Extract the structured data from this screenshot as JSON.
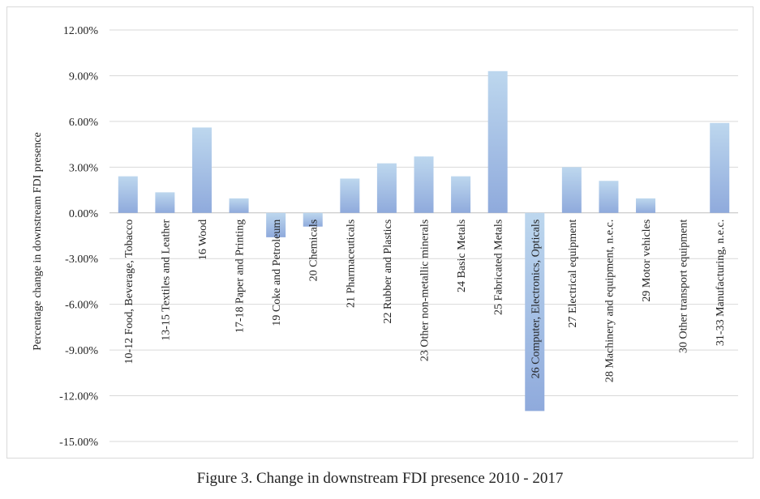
{
  "caption": "Figure 3. Change in downstream FDI presence 2010 - 2017",
  "colors": {
    "bar_top": "#bdd7ee",
    "bar_bottom": "#8faadc",
    "grid": "#d9d9d9",
    "axis": "#bfbfbf"
  },
  "chart_data": {
    "type": "bar",
    "title": "",
    "xlabel": "",
    "ylabel": "Percentage change in downstream FDI presence",
    "ylim": [
      -0.15,
      0.12
    ],
    "yticks": [
      0.12,
      0.09,
      0.06,
      0.03,
      0.0,
      -0.03,
      -0.06,
      -0.09,
      -0.12,
      -0.15
    ],
    "ytick_labels": [
      "12.00%",
      "9.00%",
      "6.00%",
      "3.00%",
      "0.00%",
      "-3.00%",
      "-6.00%",
      "-9.00%",
      "-12.00%",
      "-15.00%"
    ],
    "grid": true,
    "legend": "none",
    "categories": [
      "10-12 Food, Beverage, Tobacco",
      "13-15 Textiles and Leather",
      "16 Wood",
      "17-18 Paper and Printing",
      "19 Coke and Petroleum",
      "20 Chemicals",
      "21 Pharmaceuticals",
      "22 Rubber and Plastics",
      "23 Other non-metallic minerals",
      "24 Basic Metals",
      "25 Fabricated Metals",
      "26 Computer, Electronics, Opticals",
      "27 Electrical equipment",
      "28 Machinery and equipment, n.e.c.",
      "29 Motor vehicles",
      "30 Other transport equipment",
      "31-33 Manufacturing, n.e.c."
    ],
    "values": [
      0.024,
      0.0135,
      0.056,
      0.0095,
      -0.016,
      -0.009,
      0.0225,
      0.0325,
      0.037,
      0.024,
      0.093,
      -0.13,
      0.03,
      0.021,
      0.0095,
      0.0,
      0.059
    ]
  }
}
